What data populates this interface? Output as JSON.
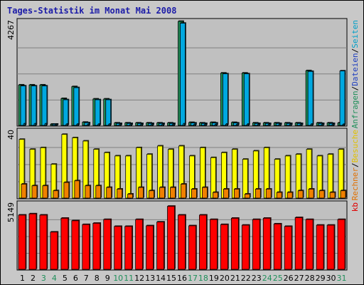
{
  "chart_data": [
    {
      "type": "bar",
      "title": "Tages-Statistik im Monat Mai 2008",
      "categories": [
        "1",
        "2",
        "3",
        "4",
        "5",
        "6",
        "7",
        "8",
        "9",
        "10",
        "11",
        "12",
        "13",
        "14",
        "15",
        "16",
        "17",
        "18",
        "19",
        "20",
        "21",
        "22",
        "23",
        "24",
        "25",
        "26",
        "27",
        "28",
        "29",
        "30",
        "31"
      ],
      "weekend_days": [
        "3",
        "4",
        "10",
        "11",
        "17",
        "18",
        "24",
        "25",
        "31"
      ],
      "ymax_label": "4267",
      "ylim": [
        0,
        4267
      ],
      "side_labels": [
        {
          "text": "Anfragen",
          "color": "#1f8f5a"
        },
        {
          "text": "/",
          "color": "#000000"
        },
        {
          "text": "Dateien",
          "color": "#1f3fbf"
        },
        {
          "text": "/",
          "color": "#000000"
        },
        {
          "text": "Seiten",
          "color": "#00a0c8"
        }
      ],
      "series": [
        {
          "name": "Anfragen",
          "color": "#1f8f5a",
          "values": [
            1640,
            1640,
            1640,
            20,
            1080,
            1570,
            100,
            1060,
            1060,
            70,
            70,
            70,
            70,
            70,
            70,
            4267,
            90,
            70,
            90,
            2130,
            90,
            2130,
            70,
            70,
            70,
            70,
            70,
            2230,
            70,
            70,
            70
          ]
        },
        {
          "name": "Dateien",
          "color": "#00a8e0",
          "values": [
            1600,
            1600,
            1600,
            20,
            1030,
            1530,
            80,
            1030,
            1030,
            50,
            50,
            50,
            50,
            50,
            50,
            4190,
            70,
            50,
            70,
            2100,
            70,
            2100,
            50,
            50,
            50,
            50,
            50,
            2200,
            50,
            50,
            2220
          ]
        },
        {
          "name": "Seiten",
          "color": "#00c8f0",
          "values": [
            30,
            30,
            30,
            5,
            20,
            20,
            10,
            20,
            20,
            10,
            10,
            10,
            10,
            10,
            10,
            30,
            10,
            10,
            10,
            20,
            10,
            20,
            10,
            10,
            10,
            10,
            10,
            20,
            10,
            10,
            10
          ]
        }
      ]
    },
    {
      "type": "bar",
      "ymax_label": "40",
      "ylim": [
        0,
        40
      ],
      "side_labels": [
        {
          "text": "Rechner",
          "color": "#e07000"
        },
        {
          "text": "/",
          "color": "#000000"
        },
        {
          "text": "Besuche",
          "color": "#e0c000"
        }
      ],
      "series": [
        {
          "name": "Besuche",
          "color": "#ffff00",
          "values": [
            35,
            29,
            30,
            20,
            38,
            36,
            34,
            29,
            27,
            25,
            25,
            30,
            26,
            31,
            29,
            31,
            25,
            30,
            24,
            27,
            29,
            23,
            28,
            30,
            23,
            25,
            26,
            29,
            25,
            26,
            29
          ]
        },
        {
          "name": "Rechner",
          "color": "#f08000",
          "values": [
            8,
            7,
            7,
            4,
            9,
            10,
            7,
            7,
            6,
            5,
            2,
            6,
            4,
            6,
            6,
            8,
            5,
            6,
            3,
            5,
            5,
            2,
            5,
            5,
            3,
            3,
            4,
            5,
            4,
            3,
            4
          ]
        }
      ]
    },
    {
      "type": "bar",
      "ymax_label": "5149",
      "ylim": [
        0,
        5149
      ],
      "side_labels": [
        {
          "text": "kb",
          "color": "#e00000"
        }
      ],
      "series": [
        {
          "name": "kb",
          "color": "#ff0000",
          "values": [
            4250,
            4350,
            4250,
            2900,
            4000,
            3800,
            3500,
            3600,
            3900,
            3350,
            3350,
            3900,
            3400,
            3700,
            4950,
            4250,
            3400,
            4250,
            3900,
            3500,
            4000,
            3450,
            3900,
            4000,
            3550,
            3350,
            4050,
            3900,
            3450,
            3450,
            3900
          ]
        }
      ]
    }
  ],
  "colors": {
    "panel_bg": "#c0c0c0",
    "weekday_label": "#000000",
    "weekend_label": "#1f8f5a"
  }
}
